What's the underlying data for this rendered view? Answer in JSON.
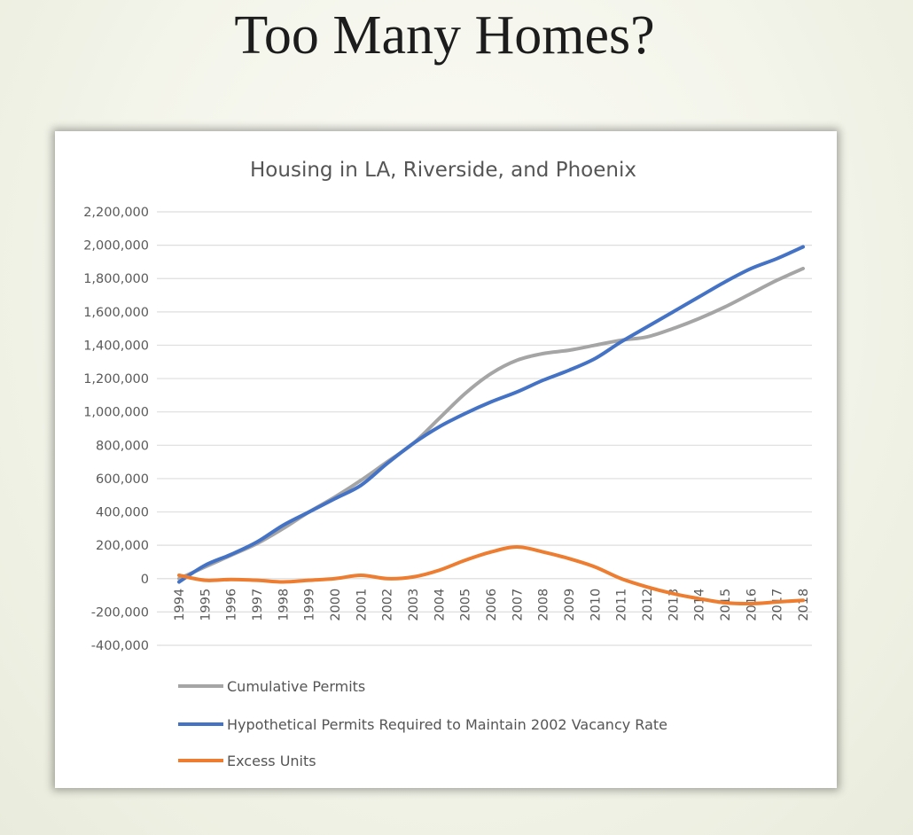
{
  "slide": {
    "title": "Too Many Homes?"
  },
  "chart_data": {
    "type": "line",
    "title": "Housing in LA, Riverside, and Phoenix",
    "xlabel": "",
    "ylabel": "",
    "ylim": [
      -400000,
      2200000
    ],
    "y_ticks": [
      2200000,
      2000000,
      1800000,
      1600000,
      1400000,
      1200000,
      1000000,
      800000,
      600000,
      400000,
      200000,
      0,
      -200000,
      -400000
    ],
    "y_tick_labels": [
      "2,200,000",
      "2,000,000",
      "1,800,000",
      "1,600,000",
      "1,400,000",
      "1,200,000",
      "1,000,000",
      "800,000",
      "600,000",
      "400,000",
      "200,000",
      "0",
      "-200,000",
      "-400,000"
    ],
    "categories": [
      "1994",
      "1995",
      "1996",
      "1997",
      "1998",
      "1999",
      "2000",
      "2001",
      "2002",
      "2003",
      "2004",
      "2005",
      "2006",
      "2007",
      "2008",
      "2009",
      "2010",
      "2011",
      "2012",
      "2013",
      "2014",
      "2015",
      "2016",
      "2017",
      "2018"
    ],
    "grid": true,
    "legend_position": "bottom",
    "series": [
      {
        "name": "Cumulative Permits",
        "color": "#a5a5a5",
        "values": [
          0,
          70000,
          140000,
          210000,
          300000,
          400000,
          490000,
          590000,
          700000,
          810000,
          960000,
          1110000,
          1230000,
          1310000,
          1350000,
          1370000,
          1400000,
          1430000,
          1450000,
          1500000,
          1560000,
          1630000,
          1710000,
          1790000,
          1860000
        ]
      },
      {
        "name": "Hypothetical Permits Required to Maintain 2002 Vacancy Rate",
        "color": "#4472c4",
        "values": [
          -20000,
          80000,
          145000,
          220000,
          320000,
          400000,
          480000,
          560000,
          690000,
          810000,
          910000,
          990000,
          1060000,
          1120000,
          1190000,
          1250000,
          1320000,
          1420000,
          1510000,
          1600000,
          1690000,
          1780000,
          1860000,
          1920000,
          1990000
        ]
      },
      {
        "name": "Excess Units",
        "color": "#ed7d31",
        "values": [
          20000,
          -10000,
          -5000,
          -10000,
          -20000,
          -10000,
          0,
          20000,
          0,
          10000,
          50000,
          110000,
          160000,
          190000,
          160000,
          120000,
          70000,
          0,
          -50000,
          -90000,
          -120000,
          -145000,
          -150000,
          -140000,
          -130000
        ]
      }
    ]
  }
}
